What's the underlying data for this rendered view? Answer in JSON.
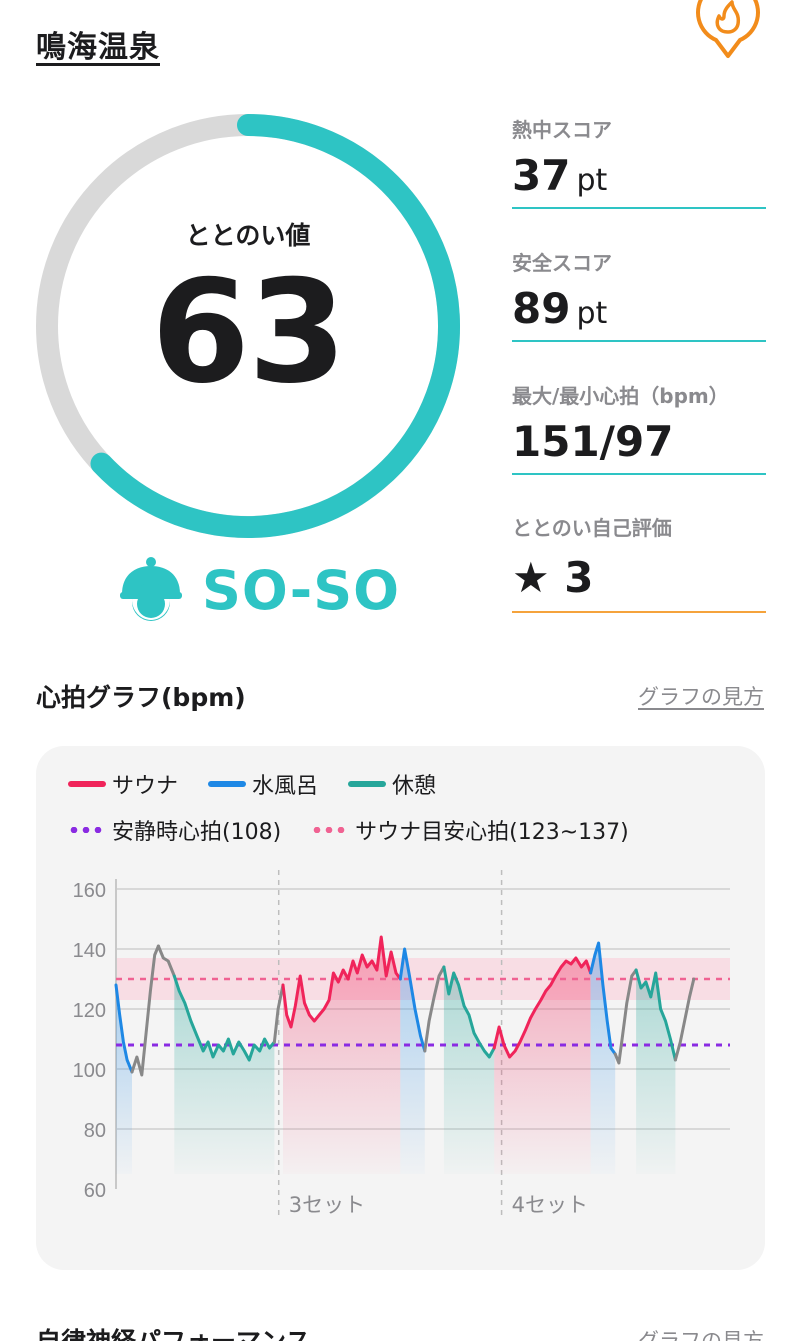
{
  "header": {
    "title": "鳴海温泉",
    "icon": "fire-pin-icon"
  },
  "gauge": {
    "label": "ととのい値",
    "value": 63,
    "max": 100,
    "level_text": "SO-SO",
    "level_icon": "sauna-hat-face-icon",
    "colors": {
      "fill": "#2ec4c4",
      "track": "#d9d9d9"
    }
  },
  "stats": [
    {
      "label": "熱中スコア",
      "value": "37",
      "unit": "pt",
      "line": "#2ec4c4"
    },
    {
      "label": "安全スコア",
      "value": "89",
      "unit": "pt",
      "line": "#2ec4c4"
    },
    {
      "label": "最大/最小心拍（bpm）",
      "value": "151/97",
      "unit": "",
      "line": "#2ec4c4"
    },
    {
      "label": "ととのい自己評価",
      "value": "3",
      "unit": "",
      "star": "★",
      "line": "#f5a33c"
    }
  ],
  "heart_section": {
    "title": "心拍グラフ(bpm)",
    "link": "グラフの見方"
  },
  "next_section": {
    "title": "自律神経パフォーマンス",
    "link": "グラフの見方"
  },
  "legend": {
    "sauna": "サウナ",
    "water": "水風呂",
    "rest": "休憩",
    "resting_hr": "安静時心拍(108)",
    "sauna_target": "サウナ目安心拍(123~137)"
  },
  "colors": {
    "sauna": "#f0245a",
    "water": "#1e88e5",
    "rest": "#26a69a",
    "transition": "#888888",
    "resting_line": "#8a2be2",
    "target_line": "#f06292",
    "target_band": "#f9d3dd"
  },
  "chart_data": {
    "type": "line",
    "y_ticks": [
      160,
      140,
      120,
      100,
      80,
      60
    ],
    "ylim": [
      60,
      160
    ],
    "xlim": [
      0,
      100
    ],
    "set_markers": [
      {
        "label": "3セット",
        "x": 26.5
      },
      {
        "label": "4セット",
        "x": 62.8
      }
    ],
    "resting_hr": 108,
    "target_band": [
      123,
      137
    ],
    "target_line": 130,
    "segments": [
      {
        "phase": "water",
        "points": [
          [
            0,
            128
          ],
          [
            0.6,
            118
          ],
          [
            1.2,
            109
          ],
          [
            1.8,
            103
          ],
          [
            2.6,
            99
          ]
        ]
      },
      {
        "phase": "transition",
        "points": [
          [
            2.6,
            99
          ],
          [
            3.4,
            104
          ],
          [
            4.2,
            98
          ],
          [
            4.9,
            112
          ],
          [
            5.6,
            126
          ],
          [
            6.3,
            138
          ],
          [
            6.9,
            141
          ]
        ]
      },
      {
        "phase": "transition",
        "points": [
          [
            6.9,
            141
          ],
          [
            7.7,
            137
          ],
          [
            8.5,
            136
          ],
          [
            9.5,
            131
          ]
        ]
      },
      {
        "phase": "rest",
        "points": [
          [
            9.5,
            131
          ],
          [
            10.3,
            126
          ],
          [
            11.2,
            122
          ],
          [
            12.2,
            116
          ],
          [
            13.2,
            111
          ],
          [
            14.2,
            106
          ],
          [
            15,
            109
          ],
          [
            15.8,
            104
          ],
          [
            16.7,
            108
          ],
          [
            17.5,
            106
          ],
          [
            18.3,
            110
          ],
          [
            19.1,
            105
          ],
          [
            20,
            109
          ],
          [
            20.9,
            106
          ],
          [
            21.7,
            103
          ],
          [
            22.5,
            108
          ],
          [
            23.4,
            106
          ],
          [
            24.2,
            110
          ],
          [
            25,
            107
          ],
          [
            25.8,
            109
          ]
        ]
      },
      {
        "phase": "transition",
        "points": [
          [
            25.8,
            109
          ],
          [
            26.4,
            120
          ],
          [
            27.2,
            128
          ]
        ]
      },
      {
        "phase": "sauna",
        "points": [
          [
            27.2,
            128
          ],
          [
            27.8,
            118
          ],
          [
            28.5,
            114
          ],
          [
            29.2,
            121
          ],
          [
            30,
            131
          ],
          [
            30.7,
            122
          ],
          [
            31.5,
            118
          ],
          [
            32.3,
            116
          ],
          [
            33.1,
            118
          ],
          [
            33.9,
            120
          ],
          [
            34.7,
            123
          ],
          [
            35.4,
            132
          ],
          [
            36.2,
            129
          ],
          [
            37,
            133
          ],
          [
            37.8,
            130
          ],
          [
            38.6,
            136
          ],
          [
            39.3,
            132
          ],
          [
            40.1,
            138
          ],
          [
            40.9,
            134
          ],
          [
            41.7,
            136
          ],
          [
            42.5,
            133
          ],
          [
            43.2,
            144
          ],
          [
            44,
            131
          ],
          [
            44.8,
            139
          ],
          [
            45.6,
            132
          ],
          [
            46.3,
            130
          ]
        ]
      },
      {
        "phase": "water",
        "points": [
          [
            46.3,
            130
          ],
          [
            47,
            140
          ],
          [
            47.8,
            131
          ],
          [
            48.7,
            120
          ],
          [
            49.6,
            111
          ],
          [
            50.3,
            106
          ]
        ]
      },
      {
        "phase": "transition",
        "points": [
          [
            50.3,
            106
          ],
          [
            51,
            116
          ],
          [
            51.8,
            124
          ],
          [
            52.6,
            131
          ],
          [
            53.4,
            134
          ]
        ]
      },
      {
        "phase": "rest",
        "points": [
          [
            53.4,
            134
          ],
          [
            54.2,
            125
          ],
          [
            55,
            132
          ],
          [
            55.8,
            128
          ],
          [
            56.7,
            121
          ],
          [
            57.5,
            118
          ],
          [
            58.3,
            112
          ],
          [
            59.1,
            109
          ],
          [
            60,
            106
          ],
          [
            60.8,
            104
          ],
          [
            61.6,
            107
          ]
        ]
      },
      {
        "phase": "sauna",
        "points": [
          [
            61.6,
            107
          ],
          [
            62.4,
            114
          ],
          [
            63.2,
            108
          ],
          [
            64.1,
            104
          ],
          [
            65,
            106
          ],
          [
            65.8,
            109
          ],
          [
            66.7,
            113
          ],
          [
            67.5,
            117
          ],
          [
            68.3,
            120
          ],
          [
            69.2,
            123
          ],
          [
            70,
            126
          ],
          [
            70.8,
            128
          ],
          [
            71.6,
            131
          ],
          [
            72.5,
            134
          ],
          [
            73.3,
            136
          ],
          [
            74.1,
            135
          ],
          [
            74.9,
            137
          ],
          [
            75.8,
            134
          ],
          [
            76.6,
            136
          ],
          [
            77.3,
            132
          ]
        ]
      },
      {
        "phase": "water",
        "points": [
          [
            77.3,
            132
          ],
          [
            78,
            138
          ],
          [
            78.6,
            142
          ],
          [
            79.3,
            128
          ],
          [
            80,
            116
          ],
          [
            80.6,
            107
          ],
          [
            81.3,
            105
          ]
        ]
      },
      {
        "phase": "transition",
        "points": [
          [
            81.3,
            105
          ],
          [
            81.9,
            102
          ],
          [
            82.5,
            111
          ],
          [
            83.2,
            122
          ],
          [
            84,
            131
          ],
          [
            84.7,
            133
          ]
        ]
      },
      {
        "phase": "rest",
        "points": [
          [
            84.7,
            133
          ],
          [
            85.5,
            127
          ],
          [
            86.3,
            129
          ],
          [
            87.1,
            124
          ],
          [
            87.9,
            132
          ],
          [
            88.7,
            120
          ],
          [
            89.5,
            116
          ],
          [
            90.3,
            110
          ],
          [
            91.1,
            103
          ]
        ]
      },
      {
        "phase": "transition",
        "points": [
          [
            91.1,
            103
          ],
          [
            91.9,
            109
          ],
          [
            92.6,
            116
          ],
          [
            93.4,
            124
          ],
          [
            94.1,
            130
          ]
        ]
      }
    ]
  }
}
